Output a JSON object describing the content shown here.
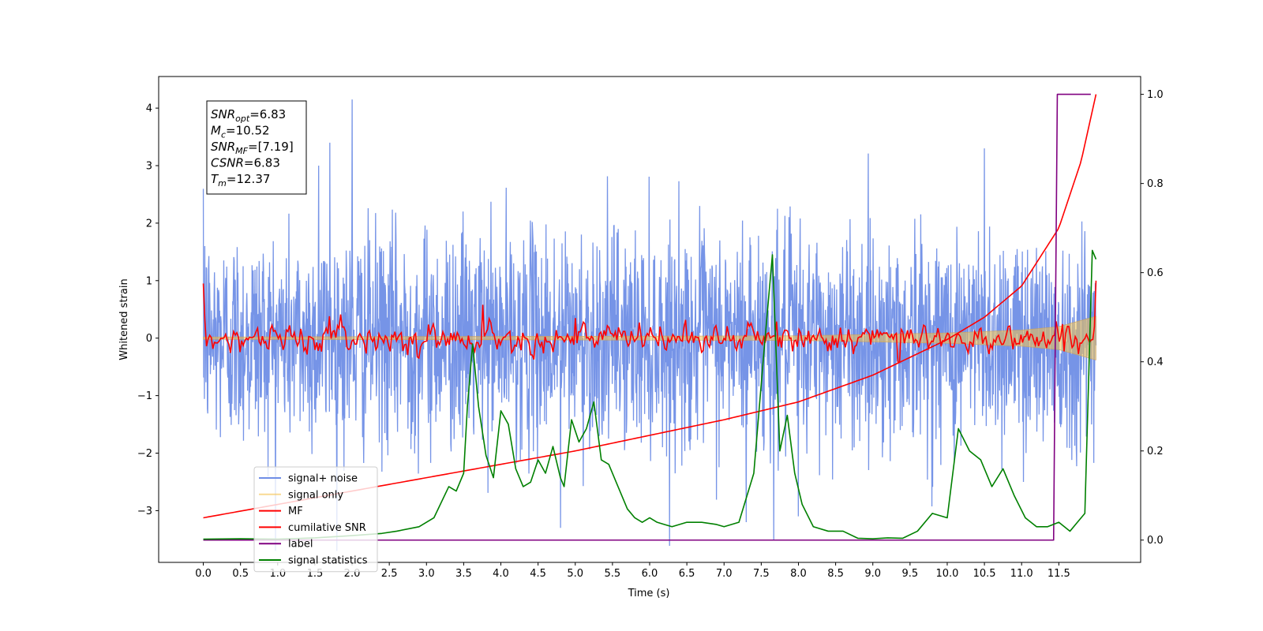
{
  "chart_data": {
    "type": "line",
    "xlabel": "Time (s)",
    "ylabel": "Whitened strain",
    "xlim": [
      -0.6,
      12.6
    ],
    "ylim": [
      -3.9,
      4.55
    ],
    "y2lim": [
      -0.05,
      1.04
    ],
    "x_ticks": [
      "0.0",
      "0.5",
      "1.0",
      "1.5",
      "2.0",
      "2.5",
      "3.0",
      "3.5",
      "4.0",
      "4.5",
      "5.0",
      "5.5",
      "6.0",
      "6.5",
      "7.0",
      "7.5",
      "8.0",
      "8.5",
      "9.0",
      "9.5",
      "10.0",
      "10.5",
      "11.0",
      "11.5"
    ],
    "y_ticks": [
      "−3",
      "−2",
      "−1",
      "0",
      "1",
      "2",
      "3",
      "4"
    ],
    "y2_ticks": [
      "0.0",
      "0.2",
      "0.4",
      "0.6",
      "0.8",
      "1.0"
    ],
    "annotation": {
      "lines": [
        {
          "sym": "SNR",
          "sub": "opt",
          "val": "=6.83"
        },
        {
          "sym": "M",
          "sub": "c",
          "val": "=10.52"
        },
        {
          "sym": "SNR",
          "sub": "MF",
          "val": "=[7.19]"
        },
        {
          "sym": "CSNR",
          "sub": "",
          "val": "=6.83"
        },
        {
          "sym": "T",
          "sub": "m",
          "val": "=12.37"
        }
      ]
    },
    "legend": {
      "placement": "lower-left",
      "entries": [
        {
          "label": "signal+ noise",
          "color": "#6f8ee6"
        },
        {
          "label": "signal only",
          "color": "#f5c24b"
        },
        {
          "label": "MF",
          "color": "#ff0000"
        },
        {
          "label": "cumilative SNR",
          "color": "#ff0000"
        },
        {
          "label": "label",
          "color": "#800080"
        },
        {
          "label": "signal statistics",
          "color": "#008000"
        }
      ]
    },
    "series": [
      {
        "name": "signal+ noise",
        "axis": "left",
        "color": "#6f8ee6",
        "x_range": [
          0.0,
          12.0
        ],
        "amplitude": 1.3,
        "spikes": [
          [
            0.02,
            1.6
          ],
          [
            0.02,
            -2.2
          ],
          [
            2.0,
            4.15
          ],
          [
            7.67,
            -3.52
          ],
          [
            8.0,
            -3.1
          ],
          [
            4.8,
            -3.3
          ],
          [
            1.7,
            3.4
          ],
          [
            1.55,
            3.0
          ],
          [
            10.5,
            3.3
          ],
          [
            7.3,
            -3.2
          ]
        ]
      },
      {
        "name": "signal only",
        "axis": "left",
        "color": "#f5c24b",
        "x_range": [
          0.0,
          12.0
        ],
        "envelope": [
          [
            0.0,
            0.02
          ],
          [
            8.0,
            0.04
          ],
          [
            10.0,
            0.09
          ],
          [
            11.0,
            0.14
          ],
          [
            11.5,
            0.2
          ],
          [
            12.0,
            0.38
          ]
        ]
      },
      {
        "name": "MF",
        "axis": "left",
        "color": "#ff0000",
        "x_range": [
          0.0,
          12.0
        ],
        "start_value": 0.95,
        "end_value": 1.0,
        "peaks": [
          [
            3.75,
            0.58
          ],
          [
            9.35,
            -0.42
          ],
          [
            1.7,
            0.38
          ],
          [
            5.0,
            0.35
          ]
        ]
      },
      {
        "name": "cumilative SNR",
        "axis": "right",
        "color": "#ff0000",
        "x": [
          0.0,
          1.0,
          2.0,
          3.0,
          4.0,
          5.0,
          6.0,
          7.0,
          7.5,
          8.0,
          8.5,
          9.0,
          9.5,
          10.0,
          10.5,
          11.0,
          11.5,
          11.8,
          12.0
        ],
        "values": [
          0.05,
          0.08,
          0.11,
          0.14,
          0.17,
          0.2,
          0.235,
          0.27,
          0.29,
          0.31,
          0.34,
          0.37,
          0.41,
          0.45,
          0.5,
          0.57,
          0.7,
          0.85,
          1.0
        ]
      },
      {
        "name": "label",
        "axis": "right",
        "color": "#800080",
        "x": [
          0.0,
          11.43,
          11.48,
          11.93
        ],
        "values": [
          0.0,
          0.0,
          1.0,
          1.0
        ]
      },
      {
        "name": "signal statistics",
        "axis": "right",
        "color": "#008000",
        "x": [
          0.0,
          0.5,
          1.0,
          1.5,
          2.0,
          2.4,
          2.6,
          2.9,
          3.1,
          3.3,
          3.4,
          3.5,
          3.55,
          3.62,
          3.7,
          3.8,
          3.9,
          4.0,
          4.1,
          4.2,
          4.3,
          4.4,
          4.5,
          4.6,
          4.7,
          4.8,
          4.85,
          4.95,
          5.05,
          5.15,
          5.25,
          5.35,
          5.45,
          5.55,
          5.7,
          5.8,
          5.9,
          6.0,
          6.1,
          6.2,
          6.3,
          6.5,
          6.7,
          6.9,
          7.0,
          7.2,
          7.4,
          7.55,
          7.65,
          7.75,
          7.85,
          7.95,
          8.05,
          8.2,
          8.4,
          8.6,
          8.8,
          9.0,
          9.2,
          9.4,
          9.6,
          9.8,
          10.0,
          10.15,
          10.3,
          10.45,
          10.6,
          10.75,
          10.9,
          11.05,
          11.2,
          11.35,
          11.5,
          11.65,
          11.75,
          11.85,
          11.95,
          12.0
        ],
        "values": [
          0.002,
          0.003,
          0.002,
          0.005,
          0.01,
          0.015,
          0.02,
          0.03,
          0.05,
          0.12,
          0.11,
          0.15,
          0.3,
          0.44,
          0.3,
          0.19,
          0.14,
          0.29,
          0.26,
          0.16,
          0.12,
          0.13,
          0.18,
          0.15,
          0.21,
          0.14,
          0.12,
          0.27,
          0.22,
          0.25,
          0.31,
          0.18,
          0.17,
          0.13,
          0.07,
          0.05,
          0.04,
          0.05,
          0.04,
          0.035,
          0.03,
          0.04,
          0.04,
          0.035,
          0.03,
          0.04,
          0.15,
          0.45,
          0.64,
          0.2,
          0.28,
          0.15,
          0.08,
          0.03,
          0.02,
          0.02,
          0.004,
          0.003,
          0.005,
          0.004,
          0.02,
          0.06,
          0.05,
          0.25,
          0.2,
          0.18,
          0.12,
          0.16,
          0.1,
          0.05,
          0.03,
          0.03,
          0.04,
          0.02,
          0.04,
          0.06,
          0.65,
          0.63
        ]
      }
    ]
  }
}
